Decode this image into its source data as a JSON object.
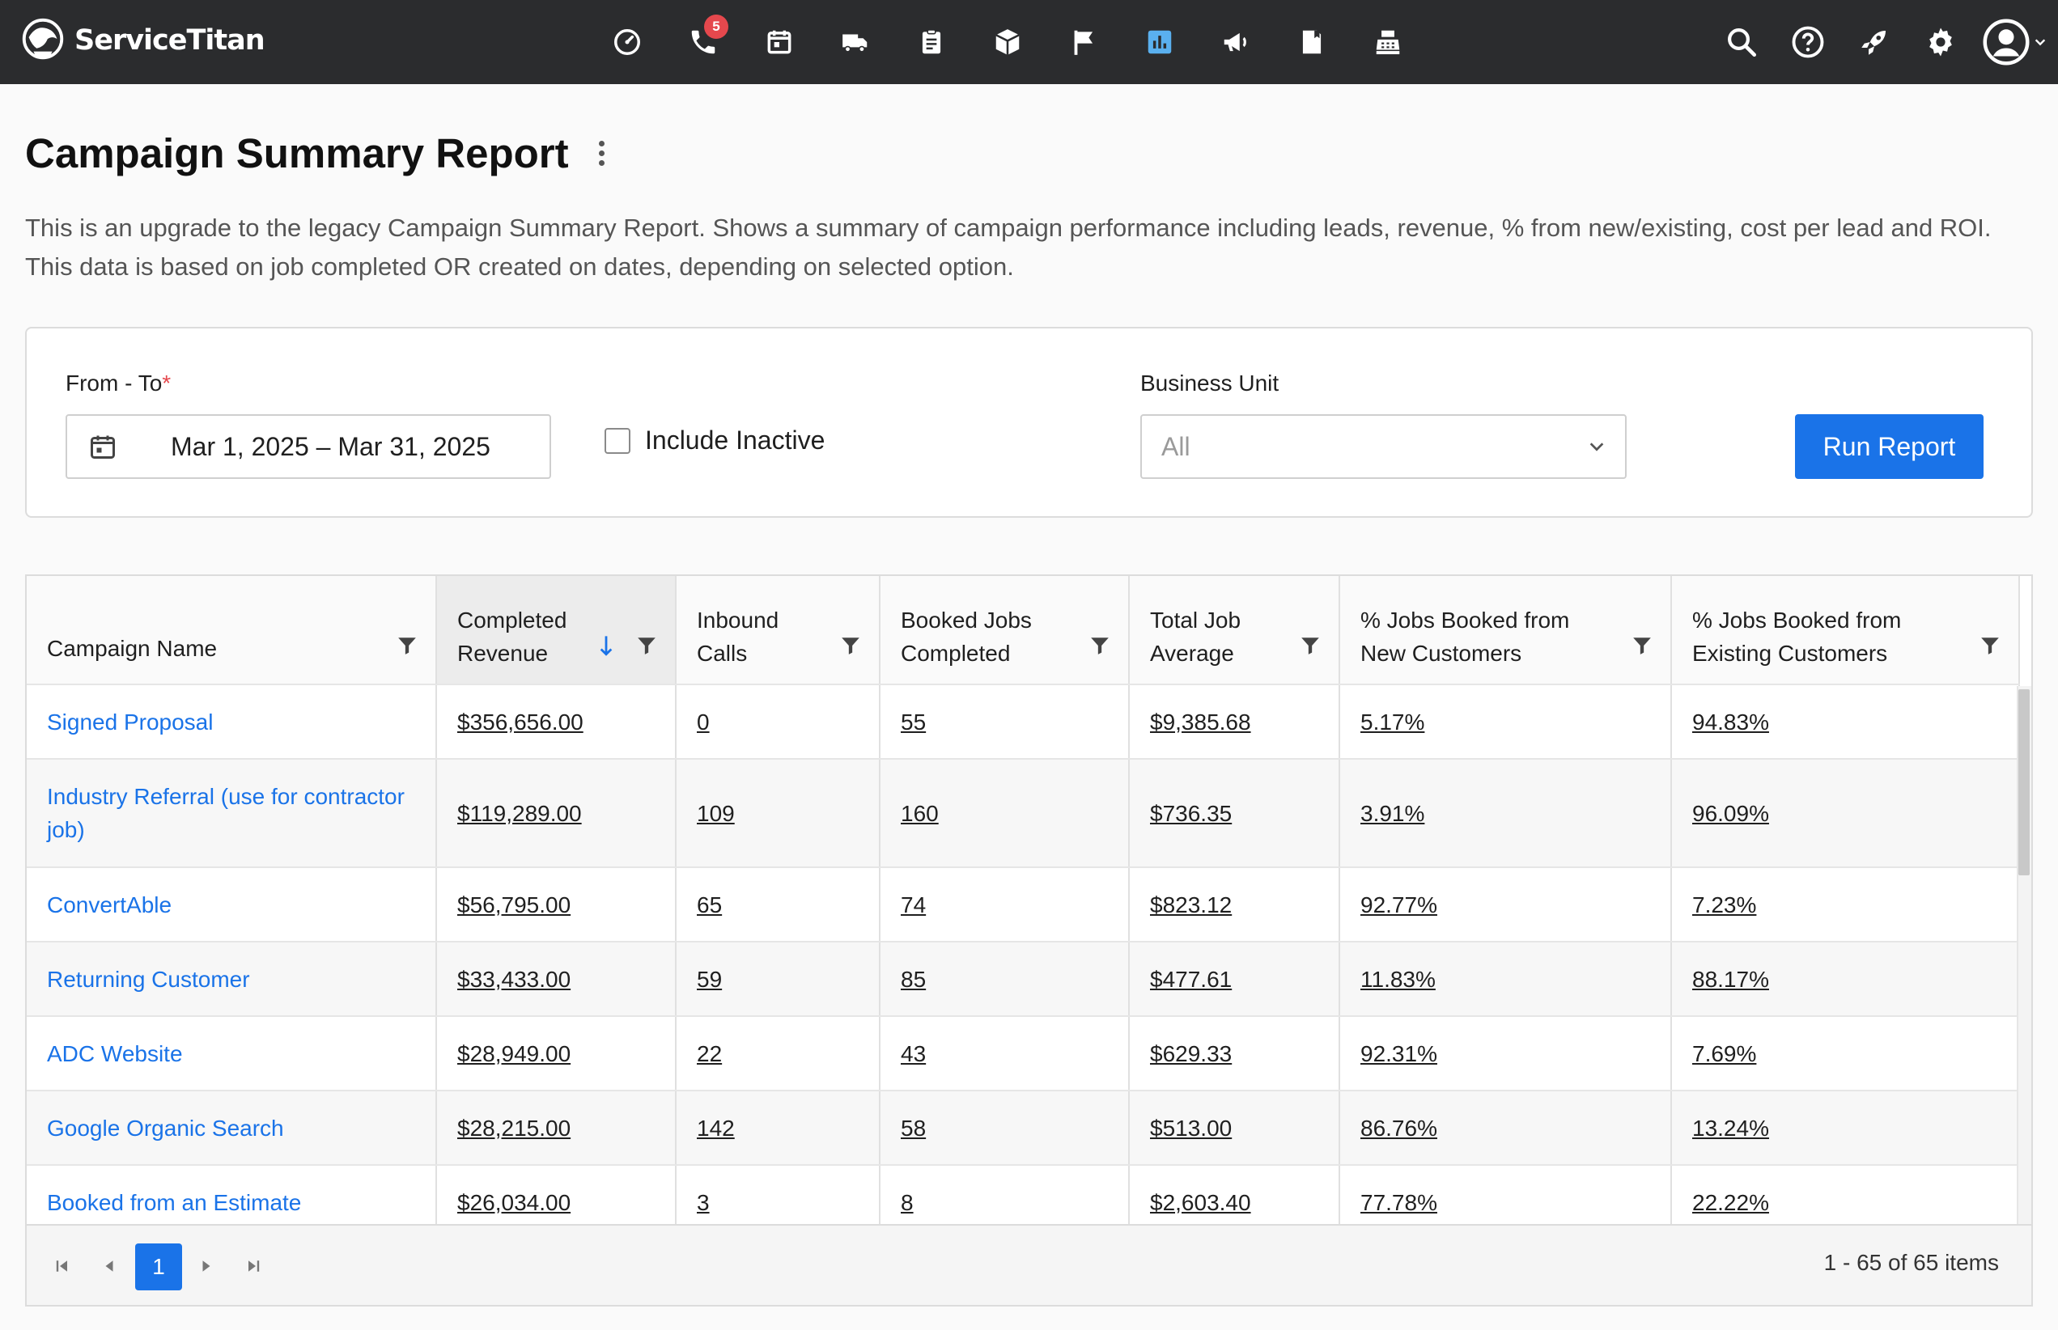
{
  "app": {
    "brand_name": "ServiceTitan",
    "nav_icons": [
      {
        "name": "dashboard-icon"
      },
      {
        "name": "phone-icon",
        "badge": "5"
      },
      {
        "name": "calendar-icon"
      },
      {
        "name": "truck-icon"
      },
      {
        "name": "clipboard-icon"
      },
      {
        "name": "box-icon"
      },
      {
        "name": "flag-icon"
      },
      {
        "name": "reports-icon",
        "active": true
      },
      {
        "name": "megaphone-icon"
      },
      {
        "name": "book-icon"
      },
      {
        "name": "cash-register-icon"
      }
    ],
    "colors": {
      "topbar": "#2b2c2e",
      "accent": "#1a73e8",
      "active_icon": "#5ab0ef",
      "badge": "#e5484d"
    }
  },
  "page": {
    "title": "Campaign Summary Report",
    "description": "This is an upgrade to the legacy Campaign Summary Report. Shows a summary of campaign performance including leads, revenue, % from new/existing, cost per lead and ROI. This data is based on job completed OR created on dates, depending on selected option."
  },
  "filters": {
    "date_label": "From - To",
    "required_mark": "*",
    "date_value": "Mar 1, 2025 – Mar 31, 2025",
    "include_inactive_label": "Include Inactive",
    "include_inactive_checked": false,
    "business_unit_label": "Business Unit",
    "business_unit_value": "All",
    "run_button": "Run Report"
  },
  "table": {
    "columns": [
      {
        "label": "Campaign Name"
      },
      {
        "label": "Completed Revenue",
        "sorted": "desc"
      },
      {
        "label": "Inbound Calls"
      },
      {
        "label": "Booked Jobs Completed"
      },
      {
        "label": "Total Job Average"
      },
      {
        "label": "% Jobs Booked from New Customers"
      },
      {
        "label": "% Jobs Booked from Existing Customers"
      }
    ],
    "rows": [
      {
        "name": "Signed Proposal",
        "revenue": "$356,656.00",
        "calls": "0",
        "booked": "55",
        "avg": "$9,385.68",
        "new_pct": "5.17%",
        "existing_pct": "94.83%"
      },
      {
        "name": "Industry Referral (use for contractor job)",
        "revenue": "$119,289.00",
        "calls": "109",
        "booked": "160",
        "avg": "$736.35",
        "new_pct": "3.91%",
        "existing_pct": "96.09%"
      },
      {
        "name": "ConvertAble",
        "revenue": "$56,795.00",
        "calls": "65",
        "booked": "74",
        "avg": "$823.12",
        "new_pct": "92.77%",
        "existing_pct": "7.23%"
      },
      {
        "name": "Returning Customer",
        "revenue": "$33,433.00",
        "calls": "59",
        "booked": "85",
        "avg": "$477.61",
        "new_pct": "11.83%",
        "existing_pct": "88.17%"
      },
      {
        "name": "ADC Website",
        "revenue": "$28,949.00",
        "calls": "22",
        "booked": "43",
        "avg": "$629.33",
        "new_pct": "92.31%",
        "existing_pct": "7.69%"
      },
      {
        "name": "Google Organic Search",
        "revenue": "$28,215.00",
        "calls": "142",
        "booked": "58",
        "avg": "$513.00",
        "new_pct": "86.76%",
        "existing_pct": "13.24%"
      },
      {
        "name": "Booked from an Estimate",
        "revenue": "$26,034.00",
        "calls": "3",
        "booked": "8",
        "avg": "$2,603.40",
        "new_pct": "77.78%",
        "existing_pct": "22.22%"
      }
    ]
  },
  "pager": {
    "current_page": "1",
    "info": "1 - 65 of 65 items"
  }
}
